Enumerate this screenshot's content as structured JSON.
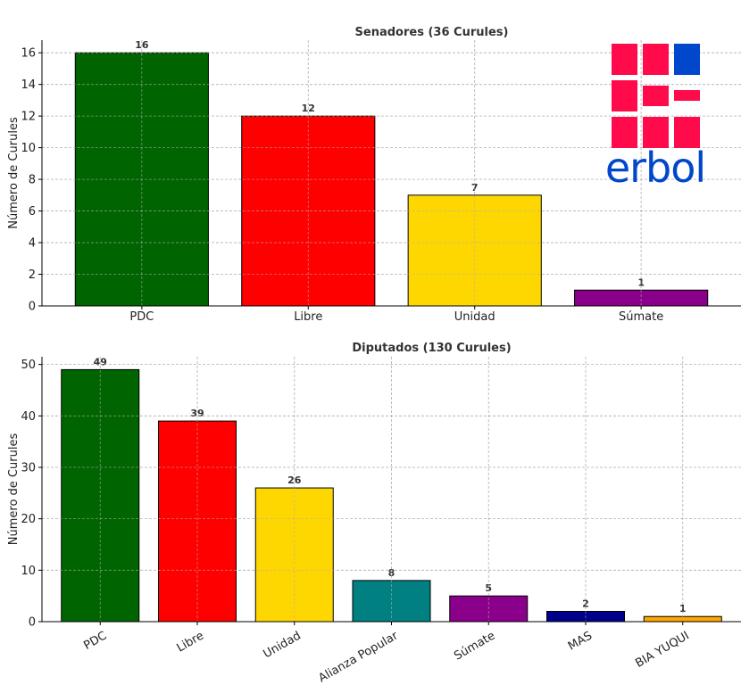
{
  "logo": {
    "text": "erbol",
    "color_red": "#ff0a4a",
    "color_blue": "#0047cc"
  },
  "chart_data": [
    {
      "type": "bar",
      "title": "Senadores (36 Curules)",
      "xlabel": "",
      "ylabel": "Número de Curules",
      "categories": [
        "PDC",
        "Libre",
        "Unidad",
        "Súmate"
      ],
      "values": [
        16,
        12,
        7,
        1
      ],
      "colors": [
        "#006400",
        "#ff0000",
        "#ffd700",
        "#8b008b"
      ],
      "ylim": [
        0,
        16.8
      ],
      "yticks": [
        0,
        2,
        4,
        6,
        8,
        10,
        12,
        14,
        16
      ],
      "grid": true,
      "xtick_rotation": 0
    },
    {
      "type": "bar",
      "title": "Diputados (130 Curules)",
      "xlabel": "",
      "ylabel": "Número de Curules",
      "categories": [
        "PDC",
        "Libre",
        "Unidad",
        "Alianza Popular",
        "Súmate",
        "MAS",
        "BIA YUQUI"
      ],
      "values": [
        49,
        39,
        26,
        8,
        5,
        2,
        1
      ],
      "colors": [
        "#006400",
        "#ff0000",
        "#ffd700",
        "#008080",
        "#8b008b",
        "#00008b",
        "#ffa500"
      ],
      "ylim": [
        0,
        51.5
      ],
      "yticks": [
        0,
        10,
        20,
        30,
        40,
        50
      ],
      "grid": true,
      "xtick_rotation": -30
    }
  ]
}
